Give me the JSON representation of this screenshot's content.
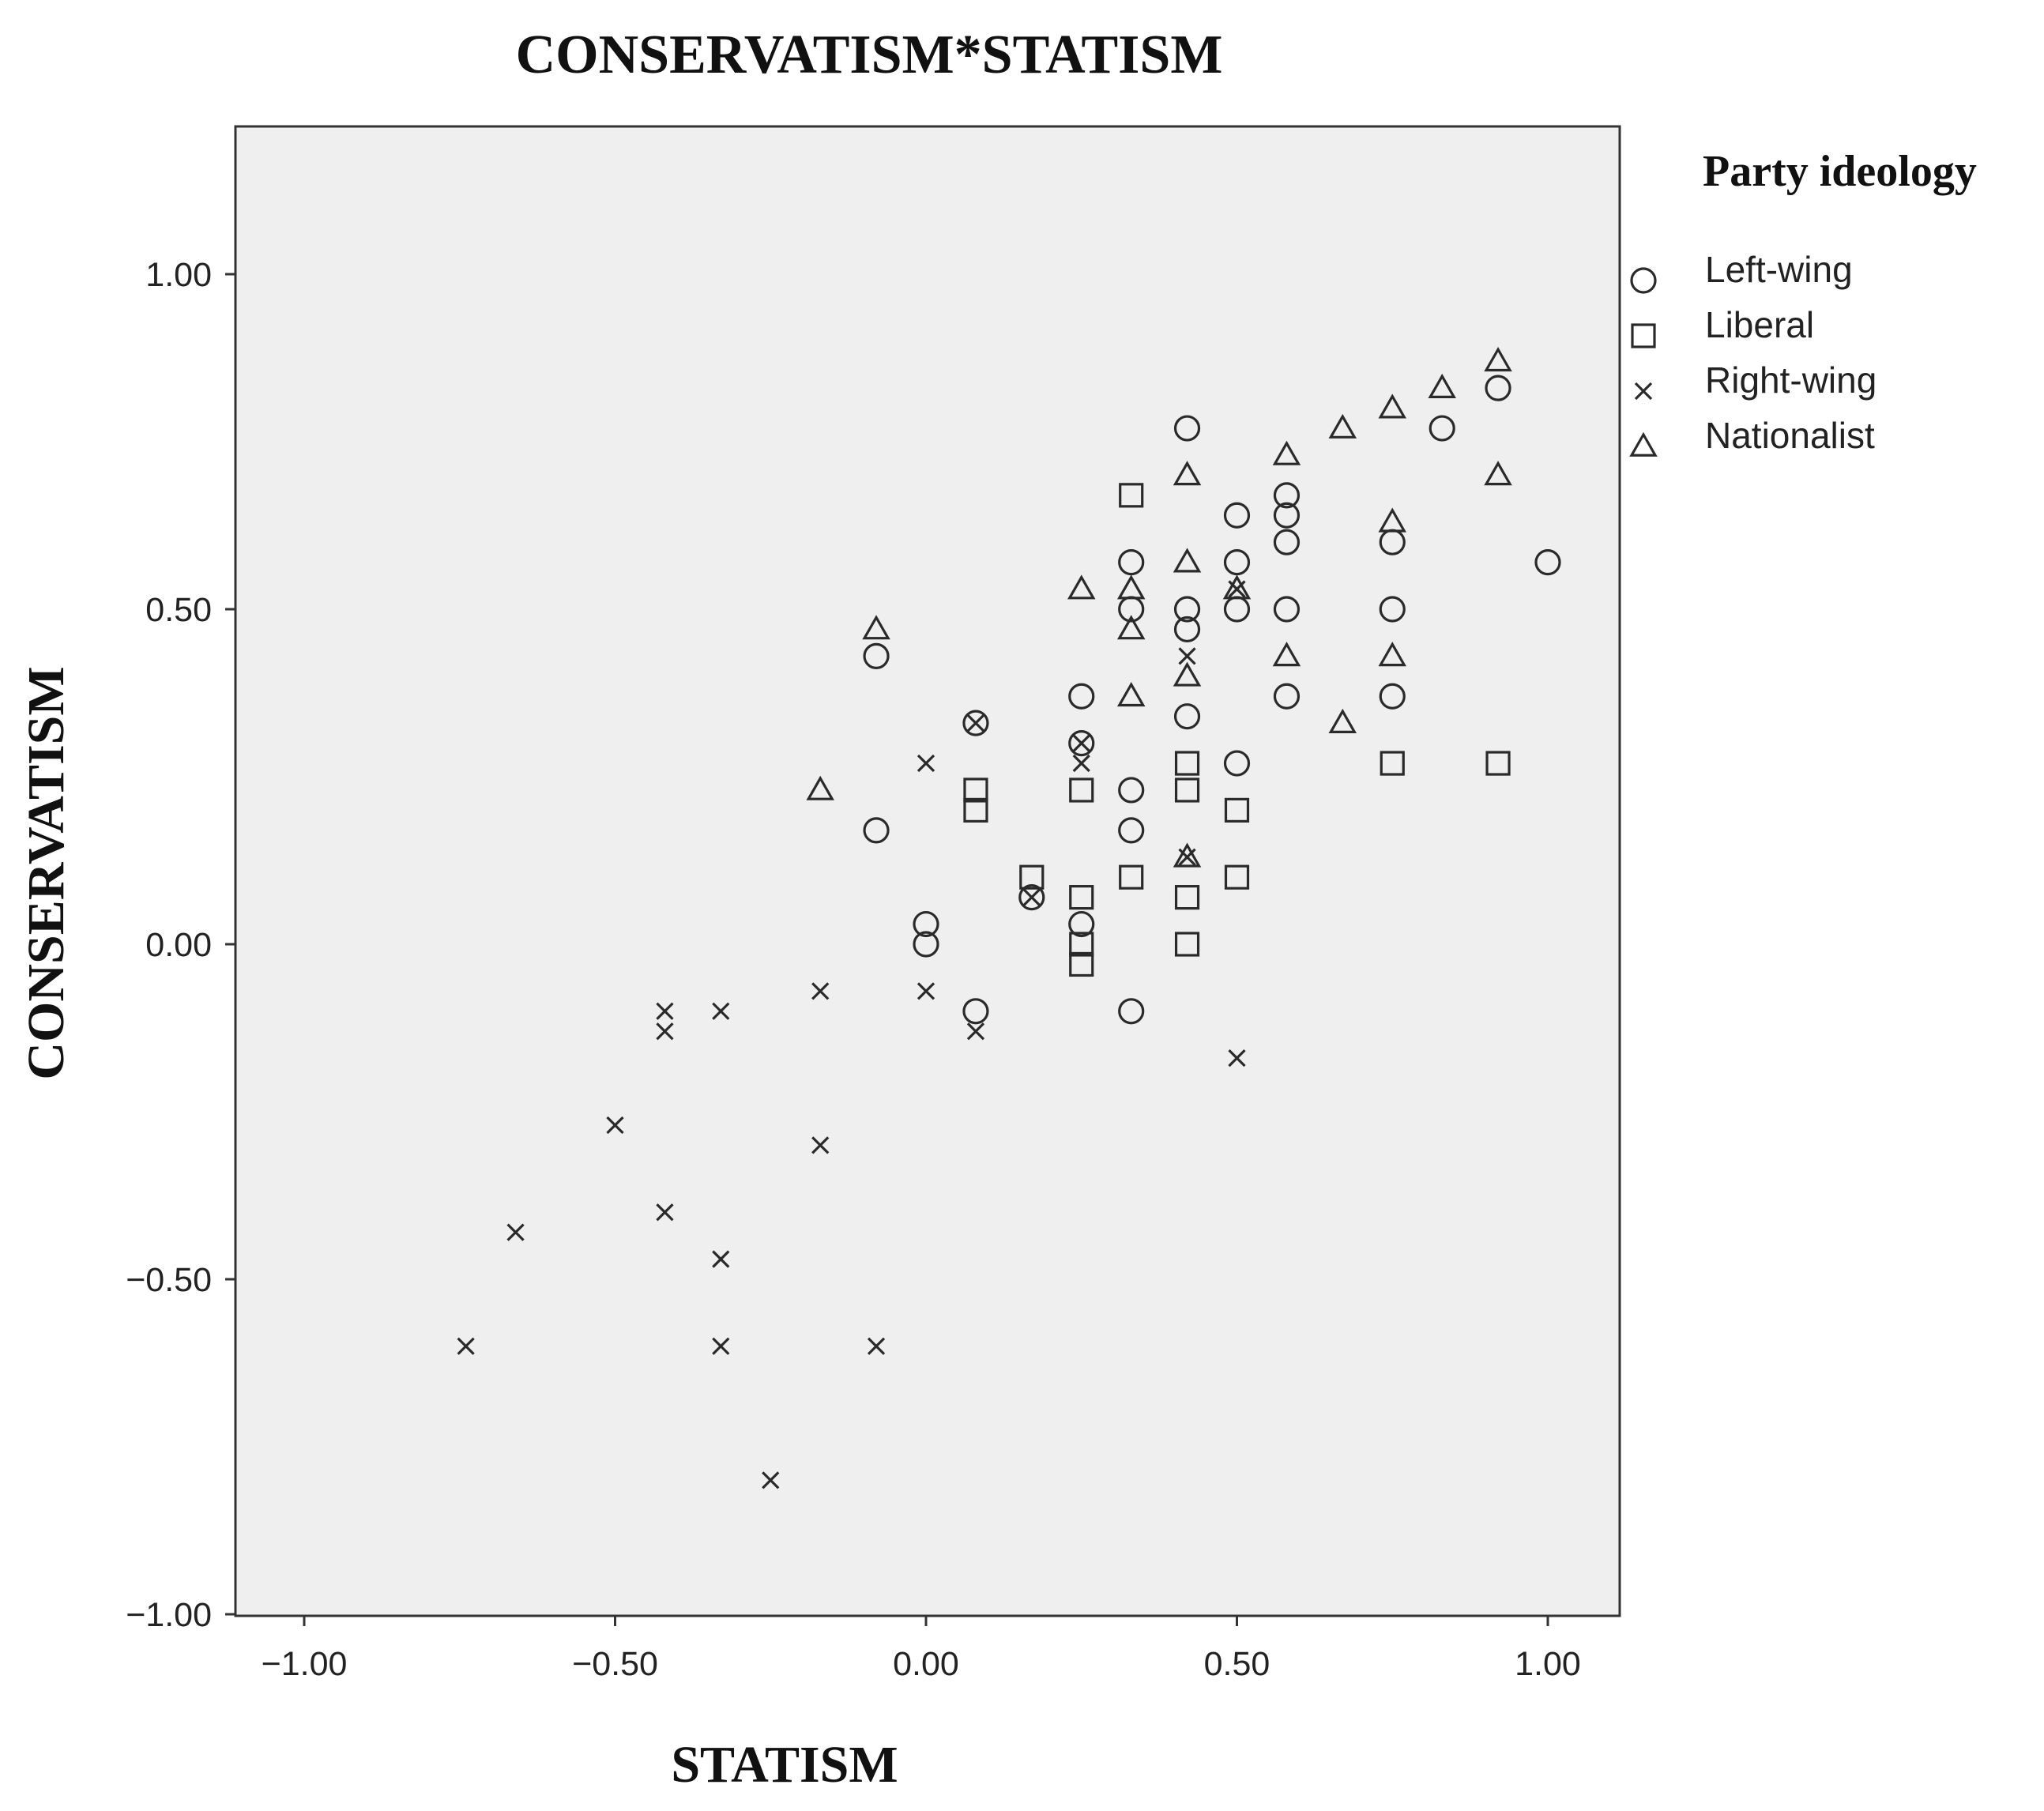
{
  "chart_data": {
    "type": "scatter",
    "title": "CONSERVATISM*STATISM",
    "xlabel": "STATISM",
    "ylabel": "CONSERVATISM",
    "xlim": [
      -1.1,
      1.1
    ],
    "ylim": [
      -1.0,
      1.22
    ],
    "xticks": [
      -1.0,
      -0.5,
      0.0,
      0.5,
      1.0
    ],
    "xtick_labels": [
      "−1.00",
      "−0.50",
      "0.00",
      "0.50",
      "1.00"
    ],
    "yticks": [
      -1.0,
      -0.5,
      0.0,
      0.5,
      1.0
    ],
    "ytick_labels": [
      "−1.00",
      "−0.50",
      "0.00",
      "0.50",
      "1.00"
    ],
    "grid": false,
    "plot_background": "#efefef",
    "legend": {
      "title": "Party ideology",
      "placement": "right"
    },
    "series": [
      {
        "name": "Left-wing",
        "marker": "circle",
        "points": [
          [
            0.42,
            0.77
          ],
          [
            0.5,
            0.64
          ],
          [
            0.5,
            0.57
          ],
          [
            0.5,
            0.5
          ],
          [
            0.58,
            0.67
          ],
          [
            0.58,
            0.64
          ],
          [
            0.58,
            0.6
          ],
          [
            0.58,
            0.5
          ],
          [
            0.58,
            0.37
          ],
          [
            0.33,
            0.57
          ],
          [
            0.33,
            0.5
          ],
          [
            0.42,
            0.5
          ],
          [
            0.42,
            0.47
          ],
          [
            0.42,
            0.34
          ],
          [
            0.75,
            0.6
          ],
          [
            0.75,
            0.5
          ],
          [
            0.75,
            0.37
          ],
          [
            0.83,
            0.77
          ],
          [
            0.92,
            0.83
          ],
          [
            1.0,
            0.57
          ],
          [
            -0.08,
            0.43
          ],
          [
            -0.08,
            0.17
          ],
          [
            0.0,
            0.03
          ],
          [
            0.0,
            0.0
          ],
          [
            0.08,
            -0.1
          ],
          [
            0.08,
            0.33
          ],
          [
            0.17,
            0.07
          ],
          [
            0.25,
            0.37
          ],
          [
            0.25,
            0.3
          ],
          [
            0.25,
            0.03
          ],
          [
            0.33,
            0.23
          ],
          [
            0.33,
            0.17
          ],
          [
            0.33,
            -0.1
          ],
          [
            0.5,
            0.27
          ]
        ]
      },
      {
        "name": "Liberal",
        "marker": "square",
        "points": [
          [
            0.33,
            0.67
          ],
          [
            0.08,
            0.23
          ],
          [
            0.08,
            0.2
          ],
          [
            0.17,
            0.1
          ],
          [
            0.25,
            0.23
          ],
          [
            0.25,
            0.07
          ],
          [
            0.25,
            0.0
          ],
          [
            0.25,
            -0.03
          ],
          [
            0.33,
            0.1
          ],
          [
            0.42,
            0.27
          ],
          [
            0.42,
            0.23
          ],
          [
            0.42,
            0.07
          ],
          [
            0.42,
            0.0
          ],
          [
            0.5,
            0.2
          ],
          [
            0.5,
            0.1
          ],
          [
            0.75,
            0.27
          ],
          [
            0.92,
            0.27
          ]
        ]
      },
      {
        "name": "Right-wing",
        "marker": "x",
        "points": [
          [
            -0.74,
            -0.6
          ],
          [
            -0.66,
            -0.43
          ],
          [
            -0.5,
            -0.27
          ],
          [
            -0.42,
            -0.1
          ],
          [
            -0.42,
            -0.13
          ],
          [
            -0.42,
            -0.4
          ],
          [
            -0.33,
            -0.1
          ],
          [
            -0.33,
            -0.47
          ],
          [
            -0.33,
            -0.6
          ],
          [
            -0.25,
            -0.8
          ],
          [
            -0.17,
            -0.07
          ],
          [
            -0.17,
            -0.3
          ],
          [
            -0.08,
            -0.6
          ],
          [
            0.0,
            0.27
          ],
          [
            0.0,
            -0.07
          ],
          [
            0.08,
            -0.13
          ],
          [
            0.08,
            0.33
          ],
          [
            0.17,
            0.07
          ],
          [
            0.25,
            0.3
          ],
          [
            0.25,
            0.27
          ],
          [
            0.42,
            0.13
          ],
          [
            0.42,
            0.43
          ],
          [
            0.5,
            -0.17
          ],
          [
            0.5,
            0.53
          ]
        ]
      },
      {
        "name": "Nationalist",
        "marker": "triangle",
        "points": [
          [
            -0.08,
            0.47
          ],
          [
            -0.17,
            0.23
          ],
          [
            0.25,
            0.53
          ],
          [
            0.33,
            0.53
          ],
          [
            0.33,
            0.47
          ],
          [
            0.33,
            0.37
          ],
          [
            0.42,
            0.7
          ],
          [
            0.42,
            0.57
          ],
          [
            0.42,
            0.4
          ],
          [
            0.42,
            0.13
          ],
          [
            0.5,
            0.53
          ],
          [
            0.58,
            0.73
          ],
          [
            0.58,
            0.43
          ],
          [
            0.67,
            0.77
          ],
          [
            0.67,
            0.33
          ],
          [
            0.75,
            0.8
          ],
          [
            0.75,
            0.63
          ],
          [
            0.75,
            0.43
          ],
          [
            0.83,
            0.83
          ],
          [
            0.92,
            0.87
          ],
          [
            0.92,
            0.7
          ]
        ]
      }
    ]
  }
}
